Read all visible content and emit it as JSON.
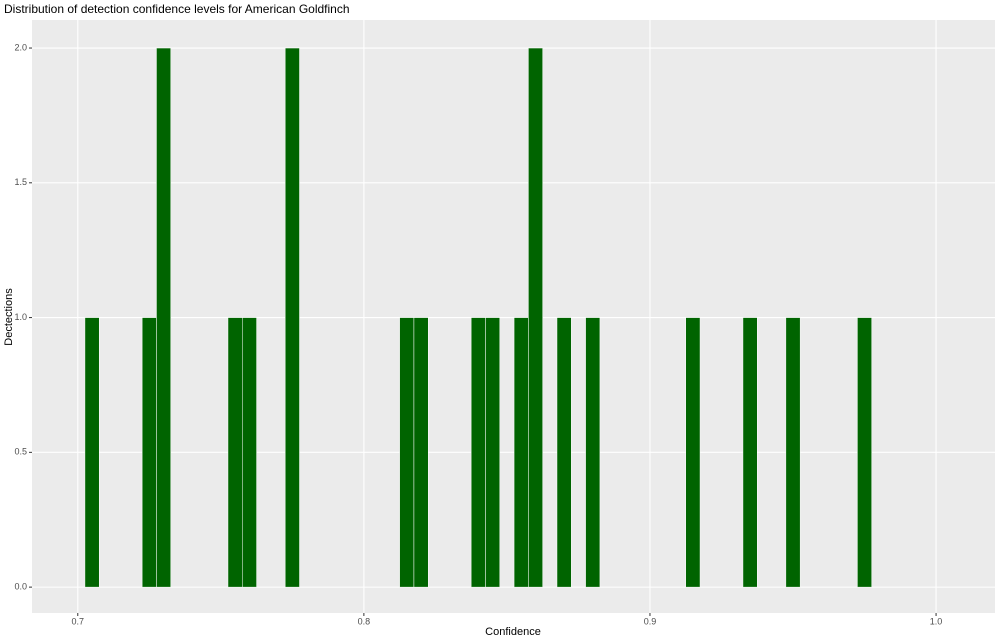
{
  "chart_data": {
    "type": "histogram",
    "title": "Distribution of detection confidence levels for American Goldfinch",
    "x_label": "Confidence",
    "y_label": "Dectections",
    "bins": [
      0.7025,
      0.7075,
      0.7125,
      0.7175,
      0.7225,
      0.7275,
      0.7325,
      0.7375,
      0.7425,
      0.7475,
      0.7525,
      0.7575,
      0.7625,
      0.7675,
      0.7725,
      0.7775,
      0.7825,
      0.7875,
      0.7925,
      0.7975,
      0.8025,
      0.8075,
      0.8125,
      0.8175,
      0.8225,
      0.8275,
      0.8325,
      0.8375,
      0.8425,
      0.8475,
      0.8525,
      0.8575,
      0.8625,
      0.8675,
      0.8725,
      0.8775,
      0.8825,
      0.8875,
      0.8925,
      0.8975,
      0.9025,
      0.9075,
      0.9125,
      0.9175,
      0.9225,
      0.9275,
      0.9325,
      0.9375,
      0.9425,
      0.9475,
      0.9525,
      0.9575,
      0.9625,
      0.9675,
      0.9725,
      0.9775
    ],
    "values": [
      1,
      0,
      0,
      0,
      1,
      2,
      0,
      0,
      0,
      0,
      1,
      1,
      0,
      0,
      2,
      0,
      0,
      0,
      0,
      0,
      0,
      0,
      1,
      1,
      0,
      0,
      0,
      1,
      1,
      0,
      1,
      2,
      0,
      1,
      0,
      1,
      0,
      0,
      0,
      0,
      0,
      0,
      1,
      0,
      0,
      0,
      1,
      0,
      0,
      1,
      0,
      0,
      0,
      0,
      1
    ],
    "color": "#006400",
    "xlim": [
      0.684,
      1.0206
    ],
    "ylim": [
      -0.096,
      2.104
    ],
    "xticks": [
      0.7,
      0.8,
      0.9,
      {
        "value": 1,
        "label": "1.0"
      }
    ],
    "yticks": [
      {
        "value": 0,
        "label": "0.0"
      },
      0.5,
      {
        "value": 1,
        "label": "1.0"
      },
      1.5,
      {
        "value": 2,
        "label": "2.0"
      }
    ],
    "grid": true
  }
}
